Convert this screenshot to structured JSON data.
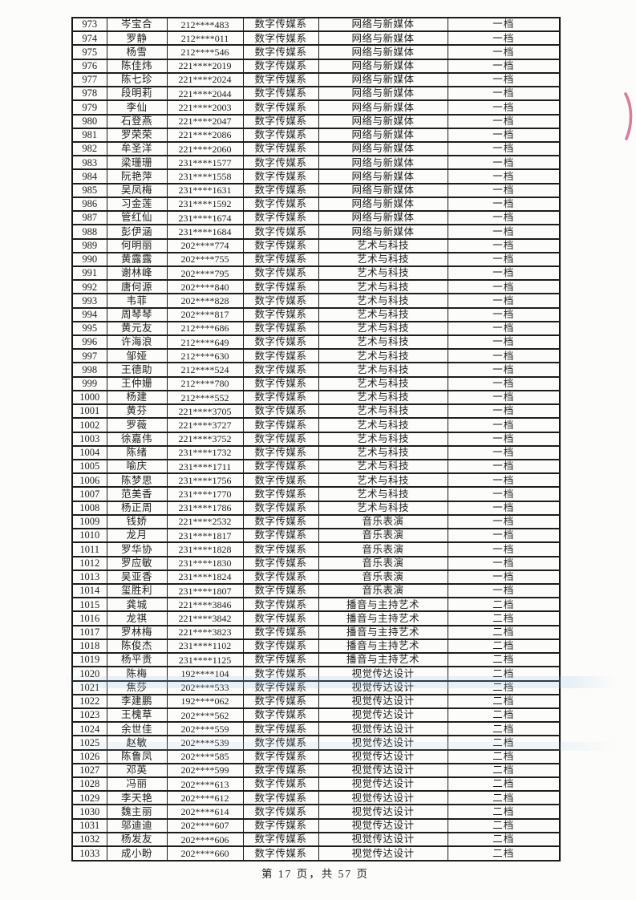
{
  "footer": {
    "text": "第 17 页，共 57 页"
  },
  "artifacts": {
    "red_mark_color": "#c84d7d",
    "streak_color": "#94c0e4"
  },
  "table": {
    "rows": [
      [
        "973",
        "岑宝合",
        "212****483",
        "数字传媒系",
        "网络与新媒体",
        "一档"
      ],
      [
        "974",
        "罗静",
        "212****011",
        "数字传媒系",
        "网络与新媒体",
        "一档"
      ],
      [
        "975",
        "杨雪",
        "212****546",
        "数字传媒系",
        "网络与新媒体",
        "一档"
      ],
      [
        "976",
        "陈佳炜",
        "221****2019",
        "数字传媒系",
        "网络与新媒体",
        "一档"
      ],
      [
        "977",
        "陈七珍",
        "221****2024",
        "数字传媒系",
        "网络与新媒体",
        "一档"
      ],
      [
        "978",
        "段明莉",
        "221****2044",
        "数字传媒系",
        "网络与新媒体",
        "一档"
      ],
      [
        "979",
        "李仙",
        "221****2003",
        "数字传媒系",
        "网络与新媒体",
        "一档"
      ],
      [
        "980",
        "石登燕",
        "221****2047",
        "数字传媒系",
        "网络与新媒体",
        "一档"
      ],
      [
        "981",
        "罗荣荣",
        "221****2086",
        "数字传媒系",
        "网络与新媒体",
        "一档"
      ],
      [
        "982",
        "牟圣洋",
        "221****2060",
        "数字传媒系",
        "网络与新媒体",
        "一档"
      ],
      [
        "983",
        "梁珊珊",
        "231****1577",
        "数字传媒系",
        "网络与新媒体",
        "一档"
      ],
      [
        "984",
        "阮艳萍",
        "231****1558",
        "数字传媒系",
        "网络与新媒体",
        "一档"
      ],
      [
        "985",
        "吴凤梅",
        "231****1631",
        "数字传媒系",
        "网络与新媒体",
        "一档"
      ],
      [
        "986",
        "习金莲",
        "231****1592",
        "数字传媒系",
        "网络与新媒体",
        "一档"
      ],
      [
        "987",
        "管红仙",
        "231****1674",
        "数字传媒系",
        "网络与新媒体",
        "一档"
      ],
      [
        "988",
        "彭伊涵",
        "231****1684",
        "数字传媒系",
        "网络与新媒体",
        "一档"
      ],
      [
        "989",
        "何明丽",
        "202****774",
        "数字传媒系",
        "艺术与科技",
        "一档"
      ],
      [
        "990",
        "黄露露",
        "202****755",
        "数字传媒系",
        "艺术与科技",
        "一档"
      ],
      [
        "991",
        "谢林峰",
        "202****795",
        "数字传媒系",
        "艺术与科技",
        "一档"
      ],
      [
        "992",
        "唐何源",
        "202****840",
        "数字传媒系",
        "艺术与科技",
        "一档"
      ],
      [
        "993",
        "韦菲",
        "202****828",
        "数字传媒系",
        "艺术与科技",
        "一档"
      ],
      [
        "994",
        "周琴琴",
        "202****817",
        "数字传媒系",
        "艺术与科技",
        "一档"
      ],
      [
        "995",
        "黄元友",
        "212****686",
        "数字传媒系",
        "艺术与科技",
        "一档"
      ],
      [
        "996",
        "许海浪",
        "212****649",
        "数字传媒系",
        "艺术与科技",
        "一档"
      ],
      [
        "997",
        "邹娅",
        "212****630",
        "数字传媒系",
        "艺术与科技",
        "一档"
      ],
      [
        "998",
        "王德助",
        "212****524",
        "数字传媒系",
        "艺术与科技",
        "一档"
      ],
      [
        "999",
        "王仲姗",
        "212****780",
        "数字传媒系",
        "艺术与科技",
        "一档"
      ],
      [
        "1000",
        "杨建",
        "212****552",
        "数字传媒系",
        "艺术与科技",
        "一档"
      ],
      [
        "1001",
        "黄芬",
        "221****3705",
        "数字传媒系",
        "艺术与科技",
        "一档"
      ],
      [
        "1002",
        "罗薇",
        "221****3727",
        "数字传媒系",
        "艺术与科技",
        "一档"
      ],
      [
        "1003",
        "徐嘉伟",
        "221****3752",
        "数字传媒系",
        "艺术与科技",
        "一档"
      ],
      [
        "1004",
        "陈绪",
        "231****1732",
        "数字传媒系",
        "艺术与科技",
        "一档"
      ],
      [
        "1005",
        "喻庆",
        "231****1711",
        "数字传媒系",
        "艺术与科技",
        "一档"
      ],
      [
        "1006",
        "陈梦思",
        "231****1756",
        "数字传媒系",
        "艺术与科技",
        "一档"
      ],
      [
        "1007",
        "范美香",
        "231****1770",
        "数字传媒系",
        "艺术与科技",
        "一档"
      ],
      [
        "1008",
        "杨正周",
        "231****1786",
        "数字传媒系",
        "艺术与科技",
        "一档"
      ],
      [
        "1009",
        "钱娇",
        "221****2532",
        "数字传媒系",
        "音乐表演",
        "一档"
      ],
      [
        "1010",
        "龙月",
        "231****1817",
        "数字传媒系",
        "音乐表演",
        "一档"
      ],
      [
        "1011",
        "罗华协",
        "231****1828",
        "数字传媒系",
        "音乐表演",
        "一档"
      ],
      [
        "1012",
        "罗应敏",
        "231****1830",
        "数字传媒系",
        "音乐表演",
        "一档"
      ],
      [
        "1013",
        "吴亚香",
        "231****1824",
        "数字传媒系",
        "音乐表演",
        "一档"
      ],
      [
        "1014",
        "玺胜利",
        "231****1807",
        "数字传媒系",
        "音乐表演",
        "一档"
      ],
      [
        "1015",
        "龚城",
        "221****3846",
        "数字传媒系",
        "播音与主持艺术",
        "二档"
      ],
      [
        "1016",
        "龙祺",
        "221****3842",
        "数字传媒系",
        "播音与主持艺术",
        "二档"
      ],
      [
        "1017",
        "罗林梅",
        "221****3823",
        "数字传媒系",
        "播音与主持艺术",
        "二档"
      ],
      [
        "1018",
        "陈俊杰",
        "231****1102",
        "数字传媒系",
        "播音与主持艺术",
        "二档"
      ],
      [
        "1019",
        "杨平贵",
        "231****1125",
        "数字传媒系",
        "播音与主持艺术",
        "二档"
      ],
      [
        "1020",
        "陈梅",
        "192****104",
        "数字传媒系",
        "视觉传达设计",
        "二档"
      ],
      [
        "1021",
        "焦莎",
        "202****533",
        "数字传媒系",
        "视觉传达设计",
        "二档"
      ],
      [
        "1022",
        "李建鹏",
        "192****062",
        "数字传媒系",
        "视觉传达设计",
        "二档"
      ],
      [
        "1023",
        "王槐草",
        "202****562",
        "数字传媒系",
        "视觉传达设计",
        "二档"
      ],
      [
        "1024",
        "余世佳",
        "202****559",
        "数字传媒系",
        "视觉传达设计",
        "二档"
      ],
      [
        "1025",
        "赵敏",
        "202****539",
        "数字传媒系",
        "视觉传达设计",
        "二档"
      ],
      [
        "1026",
        "陈鲁凤",
        "202****585",
        "数字传媒系",
        "视觉传达设计",
        "二档"
      ],
      [
        "1027",
        "邓英",
        "202****599",
        "数字传媒系",
        "视觉传达设计",
        "二档"
      ],
      [
        "1028",
        "冯丽",
        "202****613",
        "数字传媒系",
        "视觉传达设计",
        "二档"
      ],
      [
        "1029",
        "李天艳",
        "202****612",
        "数字传媒系",
        "视觉传达设计",
        "二档"
      ],
      [
        "1030",
        "魏主丽",
        "202****614",
        "数字传媒系",
        "视觉传达设计",
        "二档"
      ],
      [
        "1031",
        "邬迪迪",
        "202****607",
        "数字传媒系",
        "视觉传达设计",
        "二档"
      ],
      [
        "1032",
        "杨发友",
        "202****606",
        "数字传媒系",
        "视觉传达设计",
        "二档"
      ],
      [
        "1033",
        "成小盼",
        "202****660",
        "数字传媒系",
        "视觉传达设计",
        "二档"
      ]
    ]
  }
}
